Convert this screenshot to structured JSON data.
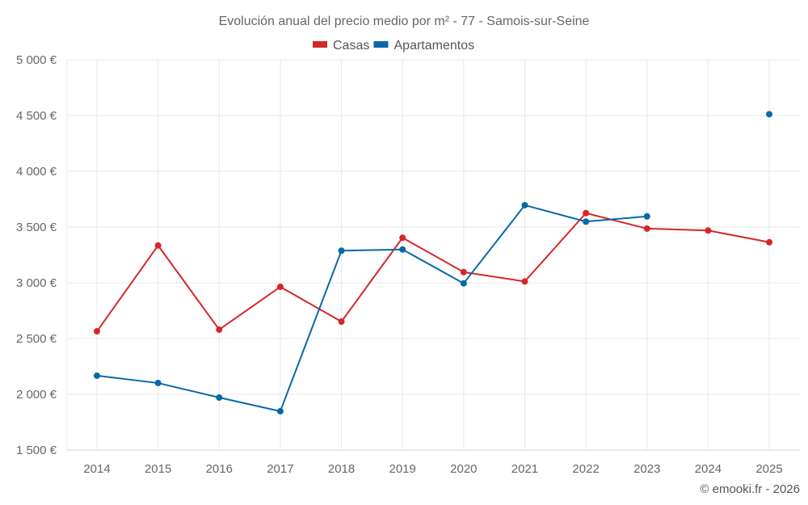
{
  "chart_data": {
    "type": "line",
    "title": "Evolución anual del precio medio por m² - 77 - Samois-sur-Seine",
    "xlabel": "",
    "ylabel": "",
    "categories": [
      "2014",
      "2015",
      "2016",
      "2017",
      "2018",
      "2019",
      "2020",
      "2021",
      "2022",
      "2023",
      "2024",
      "2025"
    ],
    "ylim": [
      1500,
      5000
    ],
    "yticks": [
      1500,
      2000,
      2500,
      3000,
      3500,
      4000,
      4500,
      5000
    ],
    "ytick_labels": [
      "1 500 €",
      "2 000 €",
      "2 500 €",
      "3 000 €",
      "3 500 €",
      "4 000 €",
      "4 500 €",
      "5 000 €"
    ],
    "grid": true,
    "legend_position": "top-center",
    "series": [
      {
        "name": "Casas",
        "color": "#d62728",
        "values": [
          2565,
          3335,
          2580,
          2964,
          2652,
          3404,
          3096,
          3012,
          3625,
          3486,
          3469,
          3364
        ]
      },
      {
        "name": "Apartamentos",
        "color": "#0868a8",
        "values": [
          2167,
          2101,
          1971,
          1848,
          3288,
          3299,
          2995,
          3696,
          3549,
          3596,
          null,
          4512
        ]
      }
    ],
    "credit": "© emooki.fr - 2026"
  }
}
